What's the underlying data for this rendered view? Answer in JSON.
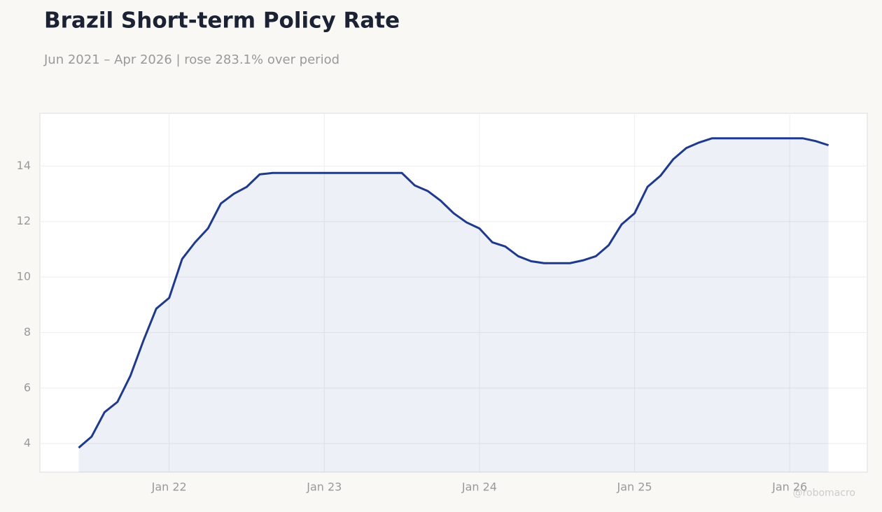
{
  "chart_data": {
    "type": "area",
    "title": "Brazil Short-term Policy Rate",
    "subtitle": "Jun 2021 – Apr 2026 | rose 283.1% over period",
    "watermark": "@robomacro",
    "x": [
      "2021-06",
      "2021-07",
      "2021-08",
      "2021-09",
      "2021-10",
      "2021-11",
      "2021-12",
      "2022-01",
      "2022-02",
      "2022-03",
      "2022-04",
      "2022-05",
      "2022-06",
      "2022-07",
      "2022-08",
      "2022-09",
      "2022-10",
      "2022-11",
      "2022-12",
      "2023-01",
      "2023-02",
      "2023-03",
      "2023-04",
      "2023-05",
      "2023-06",
      "2023-07",
      "2023-08",
      "2023-09",
      "2023-10",
      "2023-11",
      "2023-12",
      "2024-01",
      "2024-02",
      "2024-03",
      "2024-04",
      "2024-05",
      "2024-06",
      "2024-07",
      "2024-08",
      "2024-09",
      "2024-10",
      "2024-11",
      "2024-12",
      "2025-01",
      "2025-02",
      "2025-03",
      "2025-04",
      "2025-05",
      "2025-06",
      "2025-07",
      "2025-08",
      "2025-09",
      "2025-10",
      "2025-11",
      "2025-12",
      "2026-01",
      "2026-02",
      "2026-03",
      "2026-04"
    ],
    "series": [
      {
        "name": "Policy Rate",
        "color": "#1f3a8a",
        "values": [
          3.85,
          4.25,
          5.13,
          5.5,
          6.44,
          7.7,
          8.86,
          9.25,
          10.65,
          11.25,
          11.75,
          12.65,
          13.0,
          13.25,
          13.7,
          13.75,
          13.75,
          13.75,
          13.75,
          13.75,
          13.75,
          13.75,
          13.75,
          13.75,
          13.75,
          13.75,
          13.3,
          13.1,
          12.75,
          12.3,
          11.97,
          11.75,
          11.25,
          11.1,
          10.75,
          10.57,
          10.5,
          10.5,
          10.5,
          10.6,
          10.75,
          11.15,
          11.9,
          12.3,
          13.25,
          13.65,
          14.25,
          14.65,
          14.85,
          15,
          15,
          15,
          15,
          15,
          15,
          15,
          15,
          14.9,
          14.75
        ]
      }
    ],
    "xlim": [
      "2021-03",
      "2026-07"
    ],
    "xticks": [
      {
        "value": "2022-01",
        "label": "Jan 22"
      },
      {
        "value": "2023-01",
        "label": "Jan 23"
      },
      {
        "value": "2024-01",
        "label": "Jan 24"
      },
      {
        "value": "2025-01",
        "label": "Jan 25"
      },
      {
        "value": "2026-01",
        "label": "Jan 26"
      }
    ],
    "ylim": [
      2.97,
      15.9
    ],
    "yticks": [
      4,
      6,
      8,
      10,
      12,
      14
    ],
    "grid": true
  }
}
